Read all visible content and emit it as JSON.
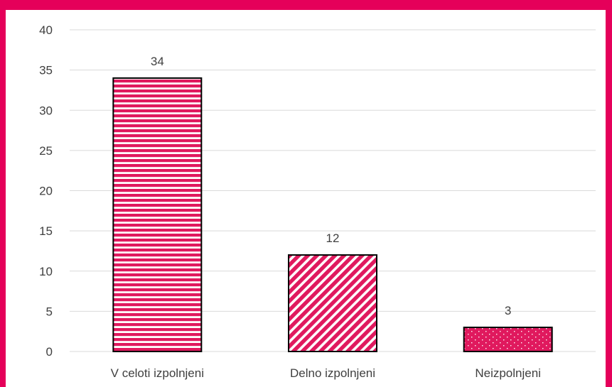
{
  "colors": {
    "frame": "#E5005A",
    "bar_fill": "#E0195E",
    "bar_stroke": "#000000",
    "grid": "#D9D9D9",
    "text": "#404040"
  },
  "chart_data": {
    "type": "bar",
    "categories": [
      "V celoti izpolnjeni",
      "Delno izpolnjeni",
      "Neizpolnjeni"
    ],
    "values": [
      34,
      12,
      3
    ],
    "data_labels": [
      "34",
      "12",
      "3"
    ],
    "patterns": [
      "horizontal-stripes",
      "diagonal-stripes",
      "dots"
    ],
    "yticks": [
      0,
      5,
      10,
      15,
      20,
      25,
      30,
      35,
      40
    ],
    "ylim": [
      0,
      40
    ],
    "grid": true,
    "legend": "none",
    "title": "",
    "xlabel": "",
    "ylabel": ""
  }
}
